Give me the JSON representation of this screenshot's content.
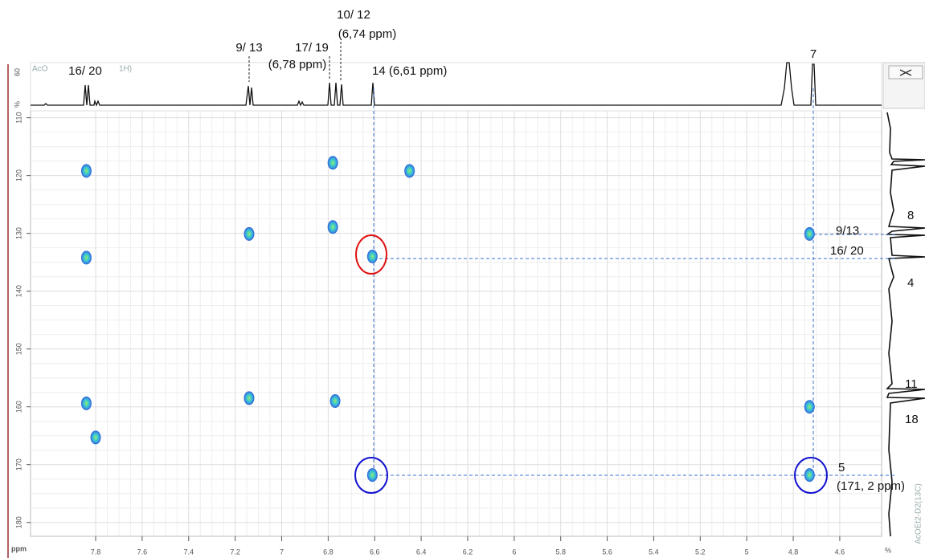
{
  "chart_data": {
    "type": "scatter",
    "x": [
      7.84,
      7.84,
      7.84,
      7.8,
      7.14,
      7.14,
      6.78,
      6.78,
      6.77,
      6.61,
      6.61,
      6.45,
      4.73,
      4.73,
      4.73
    ],
    "values": [
      119.2,
      134.2,
      159.4,
      165.3,
      130.1,
      158.5,
      117.8,
      128.9,
      159,
      134,
      171.8,
      119.2,
      130.1,
      160,
      171.8
    ],
    "color": "#2f6fd8",
    "xlim": [
      8.08,
      4.42
    ],
    "ylim": [
      108.8,
      182.4
    ],
    "xticks": [
      7.8,
      7.6,
      7.4,
      7.2,
      7,
      6.8,
      6.6,
      6.4,
      6.2,
      6,
      5.8,
      5.6,
      5.4,
      5.2,
      5,
      4.8,
      4.6
    ],
    "yticks": [
      110,
      120,
      130,
      140,
      150,
      160,
      170,
      180
    ],
    "grid": true,
    "x_unit": "ppm",
    "annotations": [
      "16/ 20",
      "9/ 13",
      "17/ 19",
      "(6,78 ppm)",
      "10/ 12",
      "(6,74 ppm)",
      "14 (6,61 ppm)",
      "7",
      "8",
      "9/13",
      "16/ 20",
      "4",
      "11",
      "18",
      "5",
      "(171, 2 ppm)"
    ]
  },
  "projection": {
    "top_axis": [
      "60",
      "%"
    ],
    "top_legend": [
      "AcO",
      "1H)"
    ],
    "corner": "%",
    "side_label": "AcOEt2-D2(13C)"
  }
}
